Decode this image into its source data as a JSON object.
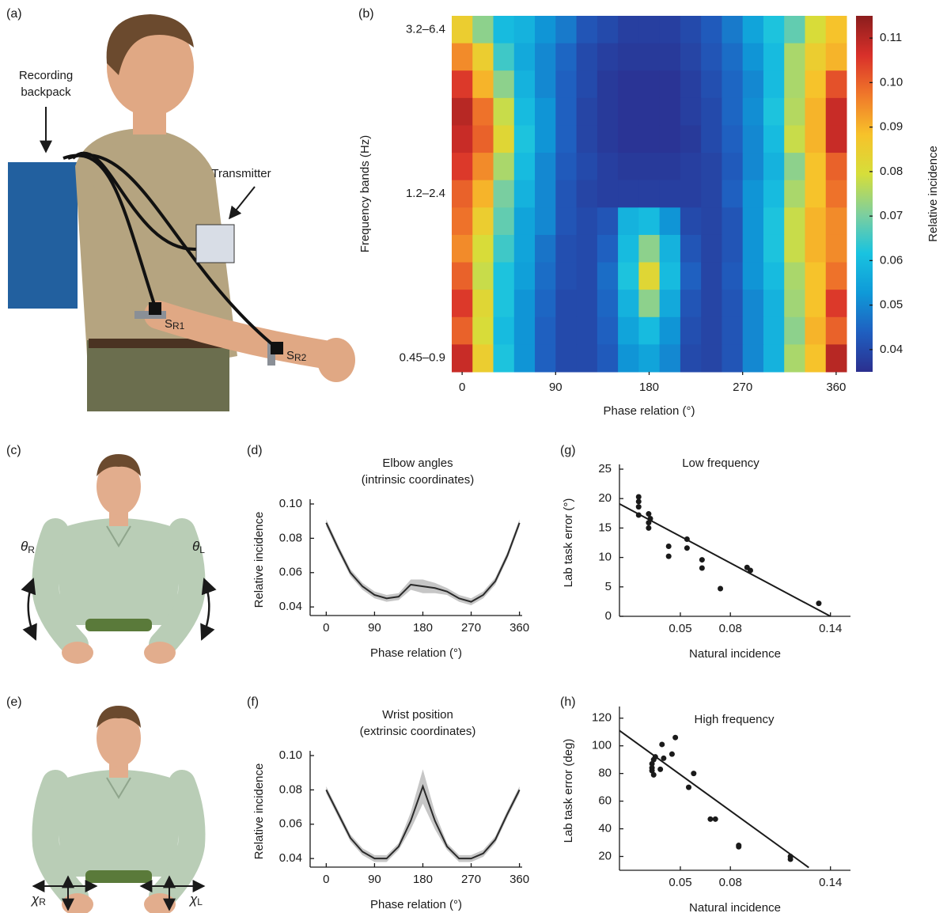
{
  "panel_labels": [
    "(a)",
    "(b)",
    "(c)",
    "(d)",
    "(e)",
    "(f)",
    "(g)",
    "(h)"
  ],
  "illustration_a": {
    "backpack_label": [
      "Recording",
      "backpack"
    ],
    "transmitter_label": "Transmitter",
    "sensors": [
      {
        "main": "S",
        "sub": "R1"
      },
      {
        "main": "S",
        "sub": "R2"
      }
    ]
  },
  "illustration_c": {
    "angles": [
      {
        "main": "θ",
        "sub": "R"
      },
      {
        "main": "θ",
        "sub": "L"
      }
    ]
  },
  "illustration_e": {
    "positions": [
      {
        "main": "χ",
        "sub": "R"
      },
      {
        "main": "χ",
        "sub": "L"
      }
    ]
  },
  "chart_data": [
    {
      "type": "heatmap",
      "xlabel": "Phase relation (°)",
      "ylabel": "Frequency bands (Hz)",
      "x": [
        0,
        20,
        40,
        60,
        80,
        100,
        120,
        140,
        160,
        180,
        200,
        220,
        240,
        260,
        280,
        300,
        320,
        340,
        360
      ],
      "xlim": [
        -10,
        370
      ],
      "xticks": [
        0,
        90,
        180,
        270,
        360
      ],
      "rows": [
        "3.2–6.4",
        null,
        null,
        null,
        null,
        null,
        "1.2–2.4",
        null,
        null,
        null,
        null,
        null,
        "0.45–0.9"
      ],
      "values": [
        [
          0.085,
          0.072,
          0.06,
          0.058,
          0.052,
          0.048,
          0.042,
          0.04,
          0.038,
          0.038,
          0.038,
          0.04,
          0.043,
          0.048,
          0.055,
          0.062,
          0.068,
          0.08,
          0.088
        ],
        [
          0.095,
          0.085,
          0.065,
          0.056,
          0.05,
          0.045,
          0.04,
          0.038,
          0.037,
          0.037,
          0.037,
          0.039,
          0.042,
          0.046,
          0.052,
          0.06,
          0.075,
          0.085,
          0.09
        ],
        [
          0.105,
          0.09,
          0.072,
          0.058,
          0.05,
          0.044,
          0.04,
          0.037,
          0.036,
          0.036,
          0.036,
          0.038,
          0.041,
          0.045,
          0.05,
          0.06,
          0.075,
          0.088,
          0.102
        ],
        [
          0.11,
          0.098,
          0.078,
          0.06,
          0.052,
          0.044,
          0.039,
          0.037,
          0.036,
          0.036,
          0.036,
          0.038,
          0.04,
          0.045,
          0.051,
          0.062,
          0.076,
          0.09,
          0.108
        ],
        [
          0.108,
          0.1,
          0.082,
          0.062,
          0.052,
          0.044,
          0.039,
          0.037,
          0.036,
          0.036,
          0.036,
          0.037,
          0.04,
          0.044,
          0.05,
          0.06,
          0.078,
          0.09,
          0.108
        ],
        [
          0.105,
          0.095,
          0.075,
          0.06,
          0.05,
          0.043,
          0.04,
          0.038,
          0.037,
          0.037,
          0.037,
          0.038,
          0.039,
          0.043,
          0.05,
          0.058,
          0.072,
          0.088,
          0.1
        ],
        [
          0.1,
          0.09,
          0.07,
          0.058,
          0.05,
          0.042,
          0.039,
          0.038,
          0.038,
          0.038,
          0.038,
          0.038,
          0.039,
          0.044,
          0.052,
          0.06,
          0.075,
          0.088,
          0.098
        ],
        [
          0.098,
          0.085,
          0.068,
          0.055,
          0.05,
          0.042,
          0.04,
          0.042,
          0.058,
          0.06,
          0.052,
          0.04,
          0.039,
          0.042,
          0.052,
          0.062,
          0.078,
          0.09,
          0.095
        ],
        [
          0.095,
          0.08,
          0.065,
          0.055,
          0.047,
          0.041,
          0.04,
          0.044,
          0.06,
          0.072,
          0.058,
          0.042,
          0.039,
          0.042,
          0.052,
          0.062,
          0.078,
          0.09,
          0.095
        ],
        [
          0.1,
          0.078,
          0.062,
          0.054,
          0.046,
          0.041,
          0.04,
          0.046,
          0.062,
          0.082,
          0.06,
          0.044,
          0.039,
          0.043,
          0.052,
          0.06,
          0.075,
          0.088,
          0.098
        ],
        [
          0.105,
          0.082,
          0.062,
          0.052,
          0.045,
          0.04,
          0.04,
          0.045,
          0.058,
          0.072,
          0.056,
          0.042,
          0.039,
          0.042,
          0.05,
          0.058,
          0.074,
          0.088,
          0.105
        ],
        [
          0.1,
          0.08,
          0.06,
          0.052,
          0.044,
          0.04,
          0.04,
          0.044,
          0.055,
          0.06,
          0.052,
          0.041,
          0.039,
          0.042,
          0.05,
          0.058,
          0.072,
          0.09,
          0.1
        ],
        [
          0.108,
          0.085,
          0.062,
          0.052,
          0.044,
          0.04,
          0.04,
          0.043,
          0.052,
          0.055,
          0.05,
          0.04,
          0.039,
          0.042,
          0.05,
          0.058,
          0.075,
          0.088,
          0.11
        ]
      ],
      "colormap": [
        "#2b2f8f",
        "#1f5fc0",
        "#0f9ad8",
        "#19c3e0",
        "#7fcf9c",
        "#d6de3a",
        "#f7c22a",
        "#f0782a",
        "#d9302a",
        "#8b1d1d"
      ],
      "colorbar": {
        "label": "Relative incidence",
        "lim": [
          0.035,
          0.115
        ],
        "ticks": [
          0.04,
          0.05,
          0.06,
          0.07,
          0.08,
          0.09,
          {
            "value": 0.1,
            "label": "0.10"
          },
          0.11
        ]
      }
    },
    {
      "type": "line",
      "title": [
        "Elbow angles",
        "(intrinsic coordinates)"
      ],
      "xlabel": "Phase relation (°)",
      "ylabel": "Relative incidence",
      "x": [
        0,
        22.5,
        45,
        67.5,
        90,
        112.5,
        135,
        157.5,
        180,
        202.5,
        225,
        247.5,
        270,
        292.5,
        315,
        337.5,
        360
      ],
      "values": [
        0.089,
        0.074,
        0.06,
        0.052,
        0.047,
        0.045,
        0.046,
        0.053,
        0.052,
        0.051,
        0.049,
        0.045,
        0.043,
        0.047,
        0.055,
        0.07,
        0.089
      ],
      "errors": [
        0.002,
        0.002,
        0.002,
        0.002,
        0.002,
        0.002,
        0.002,
        0.003,
        0.004,
        0.003,
        0.002,
        0.002,
        0.002,
        0.002,
        0.002,
        0.002,
        0.002
      ],
      "color": "#2a2a2a",
      "band_color": "#c6c6c6",
      "xlim": [
        -30,
        365
      ],
      "xticks": [
        0,
        90,
        180,
        270,
        360
      ],
      "ylim": [
        0.035,
        0.1
      ],
      "yticks": [
        0.04,
        0.06,
        0.08,
        {
          "value": 0.1,
          "label": "0.10"
        }
      ]
    },
    {
      "type": "line",
      "title": [
        "Wrist position",
        "(extrinsic coordinates)"
      ],
      "xlabel": "Phase relation (°)",
      "ylabel": "Relative incidence",
      "x": [
        0,
        22.5,
        45,
        67.5,
        90,
        112.5,
        135,
        157.5,
        180,
        202.5,
        225,
        247.5,
        270,
        292.5,
        315,
        337.5,
        360
      ],
      "values": [
        0.08,
        0.066,
        0.052,
        0.044,
        0.04,
        0.04,
        0.047,
        0.062,
        0.082,
        0.062,
        0.047,
        0.04,
        0.04,
        0.043,
        0.051,
        0.066,
        0.08
      ],
      "errors": [
        0.002,
        0.002,
        0.002,
        0.002,
        0.002,
        0.002,
        0.002,
        0.005,
        0.01,
        0.005,
        0.002,
        0.002,
        0.002,
        0.002,
        0.002,
        0.002,
        0.002
      ],
      "color": "#2a2a2a",
      "band_color": "#c6c6c6",
      "xlim": [
        -30,
        365
      ],
      "xticks": [
        0,
        90,
        180,
        270,
        360
      ],
      "ylim": [
        0.035,
        0.1
      ],
      "yticks": [
        0.04,
        0.06,
        0.08,
        {
          "value": 0.1,
          "label": "0.10"
        }
      ]
    },
    {
      "type": "scatter",
      "title": "Low frequency",
      "xlabel": "Natural incidence",
      "ylabel": "Lab task error (°)",
      "x": [
        0.025,
        0.025,
        0.025,
        0.025,
        0.031,
        0.032,
        0.031,
        0.031,
        0.043,
        0.043,
        0.054,
        0.054,
        0.063,
        0.063,
        0.074,
        0.09,
        0.092,
        0.133
      ],
      "values": [
        20.3,
        19.5,
        18.6,
        17.2,
        17.4,
        16.6,
        15.9,
        15.0,
        11.9,
        10.2,
        13.1,
        11.6,
        9.6,
        8.2,
        4.7,
        8.3,
        7.8,
        2.2
      ],
      "fit": {
        "x": [
          0.0135,
          0.14
        ],
        "values": [
          19.1,
          0
        ]
      },
      "color": "#1a1a1a",
      "xlim": [
        0.0135,
        0.152
      ],
      "xticks": [
        0.05,
        0.08,
        0.14
      ],
      "ylim": [
        0,
        25
      ],
      "yticks": [
        0,
        5,
        10,
        15,
        20,
        25
      ]
    },
    {
      "type": "scatter",
      "title": "High frequency",
      "xlabel": "Natural incidence",
      "ylabel": "Lab task error (deg)",
      "x": [
        0.033,
        0.033,
        0.033,
        0.034,
        0.034,
        0.035,
        0.038,
        0.039,
        0.04,
        0.045,
        0.047,
        0.055,
        0.058,
        0.068,
        0.071,
        0.085,
        0.085,
        0.116,
        0.116
      ],
      "values": [
        87,
        84,
        82,
        79,
        90,
        92,
        83,
        101,
        91,
        94,
        106,
        70,
        80,
        47,
        47,
        28,
        27,
        20,
        18
      ],
      "fit": {
        "x": [
          0.0135,
          0.127
        ],
        "values": [
          111,
          12
        ]
      },
      "color": "#1a1a1a",
      "xlim": [
        0.0135,
        0.152
      ],
      "xticks": [
        0.05,
        0.08,
        0.14
      ],
      "ylim": [
        10,
        125
      ],
      "yticks": [
        20,
        40,
        60,
        80,
        100,
        120
      ]
    }
  ]
}
